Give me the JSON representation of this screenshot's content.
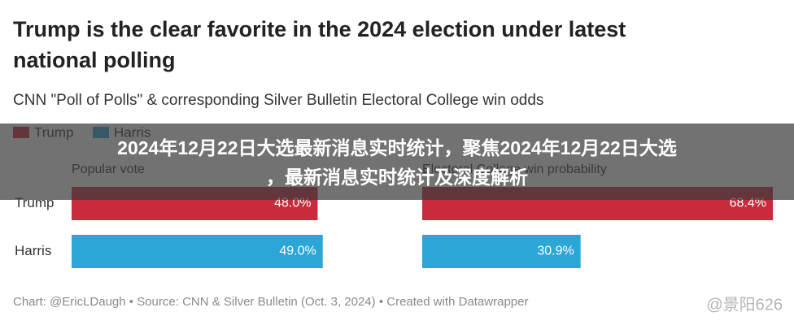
{
  "header": {
    "title": "Trump is the clear favorite in the 2024 election under latest national polling",
    "subtitle": "CNN \"Poll of Polls\" & corresponding Silver Bulletin Electoral College win odds"
  },
  "legend": [
    {
      "name": "Trump",
      "color": "#c92a3c"
    },
    {
      "name": "Harris",
      "color": "#2ba6d6"
    }
  ],
  "chart_data": [
    {
      "type": "bar",
      "orientation": "horizontal",
      "title": "Popular vote",
      "categories": [
        "Trump",
        "Harris"
      ],
      "values": [
        48.0,
        49.0
      ],
      "value_labels": [
        "48.0%",
        "49.0%"
      ],
      "xlim": [
        0,
        68.4
      ]
    },
    {
      "type": "bar",
      "orientation": "horizontal",
      "title": "Electoral College win probability",
      "values": [
        68.4,
        30.9
      ],
      "value_labels": [
        "68.4%",
        "30.9%"
      ],
      "xlim": [
        0,
        68.4
      ]
    }
  ],
  "footer": {
    "source": "Chart: @EricLDaugh • Source: CNN & Silver Bulletin (Oct. 3, 2024) • Created with Datawrapper",
    "watermark": "@景阳626"
  },
  "overlay": {
    "headline": "2024年12月22日大选最新消息实时统计，聚焦2024年12月22日大选，最新消息实时统计及深度解析"
  }
}
